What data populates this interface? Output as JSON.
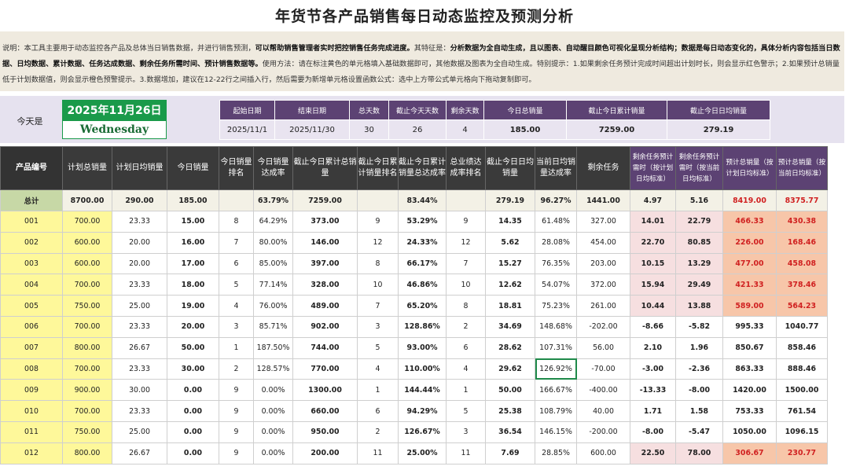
{
  "title": "年货节各产品销售每日动态监控及预测分析",
  "description": {
    "p1": "说明：本工具主要用于动态监控各产品及总体当日销售数据，并进行销售预测，",
    "b1": "可以帮助销售管理者实时把控销售任务完成进度。",
    "p2": "其特征是：",
    "b2": "分析数据为全自动生成，且以图表、自动醒目颜色可视化呈现分析结构；数据是每日动态变化的，具体分析内容包括当日数据、日均数据、累计数据、任务达成数据、剩余任务所需时间、预计销售数据等。",
    "p3": "使用方法：请在标注黄色的单元格填入基础数据即可，其他数据及图表为全自动生成。特别提示：1.如果剩余任务预计完成时间超出计划时长，则会显示红色警示；2.如果预计总销量低于计划数据值，则会显示橙色预警提示。3.数据增加，建议在12-22行之间插入行，然后需要为新增单元格设置函数公式：选中上方带公式单元格向下拖动复制即可。"
  },
  "today": {
    "label": "今天是",
    "date": "2025年11月26日",
    "weekday": "Wednesday"
  },
  "info": {
    "headers": [
      "起始日期",
      "结束日期",
      "总天数",
      "截止今天天数",
      "剩余天数",
      "今日总销量",
      "截止今日累计销量",
      "截止今日日均销量"
    ],
    "values": [
      "2025/11/1",
      "2025/11/30",
      "30",
      "26",
      "4",
      "185.00",
      "7259.00",
      "279.19"
    ]
  },
  "table": {
    "headers": [
      "产品编号",
      "计划总销量",
      "计划日均销量",
      "今日销量",
      "今日销量排名",
      "今日销量达成率",
      "截止今日累计总销量",
      "截止今日累计销量排名",
      "截止今日累计销量总达成率",
      "总业绩达成率排名",
      "截止今日日均销量",
      "当前日均销量达成率",
      "剩余任务",
      "剩余任务预计需时（按计划日均标准）",
      "剩余任务预计需时（按当前日均标准）",
      "预计总销量（按计划日均标准）",
      "预计总销量（按当前日均标准）"
    ],
    "total": [
      "总计",
      "8700.00",
      "290.00",
      "185.00",
      "",
      "63.79%",
      "7259.00",
      "",
      "83.44%",
      "",
      "279.19",
      "96.27%",
      "1441.00",
      "4.97",
      "5.16",
      "8419.00",
      "8375.77"
    ],
    "rows": [
      [
        "001",
        "700.00",
        "23.33",
        "15.00",
        "8",
        "64.29%",
        "373.00",
        "9",
        "53.29%",
        "9",
        "14.35",
        "61.48%",
        "327.00",
        "14.01",
        "22.79",
        "466.33",
        "430.38"
      ],
      [
        "002",
        "600.00",
        "20.00",
        "16.00",
        "7",
        "80.00%",
        "146.00",
        "12",
        "24.33%",
        "12",
        "5.62",
        "28.08%",
        "454.00",
        "22.70",
        "80.85",
        "226.00",
        "168.46"
      ],
      [
        "003",
        "600.00",
        "20.00",
        "17.00",
        "6",
        "85.00%",
        "397.00",
        "8",
        "66.17%",
        "7",
        "15.27",
        "76.35%",
        "203.00",
        "10.15",
        "13.29",
        "477.00",
        "458.08"
      ],
      [
        "004",
        "700.00",
        "23.33",
        "18.00",
        "5",
        "77.14%",
        "328.00",
        "10",
        "46.86%",
        "10",
        "12.62",
        "54.07%",
        "372.00",
        "15.94",
        "29.49",
        "421.33",
        "378.46"
      ],
      [
        "005",
        "750.00",
        "25.00",
        "19.00",
        "4",
        "76.00%",
        "489.00",
        "7",
        "65.20%",
        "8",
        "18.81",
        "75.23%",
        "261.00",
        "10.44",
        "13.88",
        "589.00",
        "564.23"
      ],
      [
        "006",
        "700.00",
        "23.33",
        "20.00",
        "3",
        "85.71%",
        "902.00",
        "3",
        "128.86%",
        "2",
        "34.69",
        "148.68%",
        "-202.00",
        "-8.66",
        "-5.82",
        "995.33",
        "1040.77"
      ],
      [
        "007",
        "800.00",
        "26.67",
        "50.00",
        "1",
        "187.50%",
        "744.00",
        "5",
        "93.00%",
        "6",
        "28.62",
        "107.31%",
        "56.00",
        "2.10",
        "1.96",
        "850.67",
        "858.46"
      ],
      [
        "008",
        "700.00",
        "23.33",
        "30.00",
        "2",
        "128.57%",
        "770.00",
        "4",
        "110.00%",
        "4",
        "29.62",
        "126.92%",
        "-70.00",
        "-3.00",
        "-2.36",
        "863.33",
        "888.46"
      ],
      [
        "009",
        "900.00",
        "30.00",
        "0.00",
        "9",
        "0.00%",
        "1300.00",
        "1",
        "144.44%",
        "1",
        "50.00",
        "166.67%",
        "-400.00",
        "-13.33",
        "-8.00",
        "1420.00",
        "1500.00"
      ],
      [
        "010",
        "700.00",
        "23.33",
        "0.00",
        "9",
        "0.00%",
        "660.00",
        "6",
        "94.29%",
        "5",
        "25.38",
        "108.79%",
        "40.00",
        "1.71",
        "1.58",
        "753.33",
        "761.54"
      ],
      [
        "011",
        "750.00",
        "25.00",
        "0.00",
        "9",
        "0.00%",
        "950.00",
        "2",
        "126.67%",
        "3",
        "36.54",
        "146.15%",
        "-200.00",
        "-8.00",
        "-5.47",
        "1050.00",
        "1096.15"
      ],
      [
        "012",
        "800.00",
        "26.67",
        "0.00",
        "9",
        "0.00%",
        "200.00",
        "11",
        "25.00%",
        "11",
        "7.69",
        "28.85%",
        "600.00",
        "22.50",
        "78.00",
        "306.67",
        "230.77"
      ]
    ],
    "warn_rows": [
      0,
      1,
      2,
      3,
      4,
      11
    ],
    "selected_cell": {
      "row": 7,
      "col": 11
    }
  },
  "colors": {
    "accent_purple": "#5c4273",
    "date_green": "#1a9a4a",
    "input_yellow": "#fef89a",
    "warn_red": "#d02020",
    "warn_orange": "#f7c6a9"
  }
}
